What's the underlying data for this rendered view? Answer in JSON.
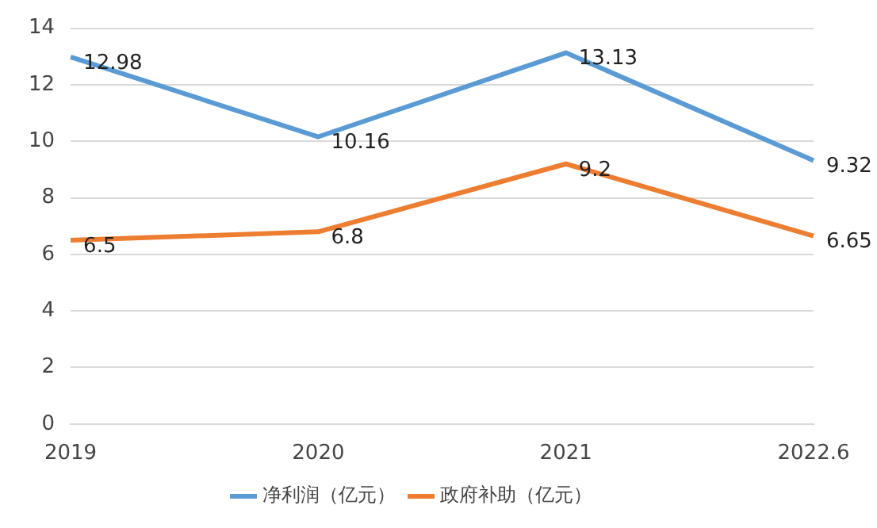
{
  "chart_data": {
    "type": "line",
    "categories": [
      "2019",
      "2020",
      "2021",
      "2022.6"
    ],
    "series": [
      {
        "name": "净利润（亿元）",
        "color": "#5b9bd5",
        "values": [
          12.98,
          10.16,
          13.13,
          9.32
        ]
      },
      {
        "name": "政府补助（亿元）",
        "color": "#ed7d31",
        "values": [
          6.5,
          6.8,
          9.2,
          6.65
        ]
      }
    ],
    "ylim": [
      0,
      14
    ],
    "yticks": [
      0,
      2,
      4,
      6,
      8,
      10,
      12,
      14
    ],
    "grid": "y",
    "legend": "bottom",
    "data_labels": true,
    "marker": "none",
    "line_style": "solid"
  }
}
